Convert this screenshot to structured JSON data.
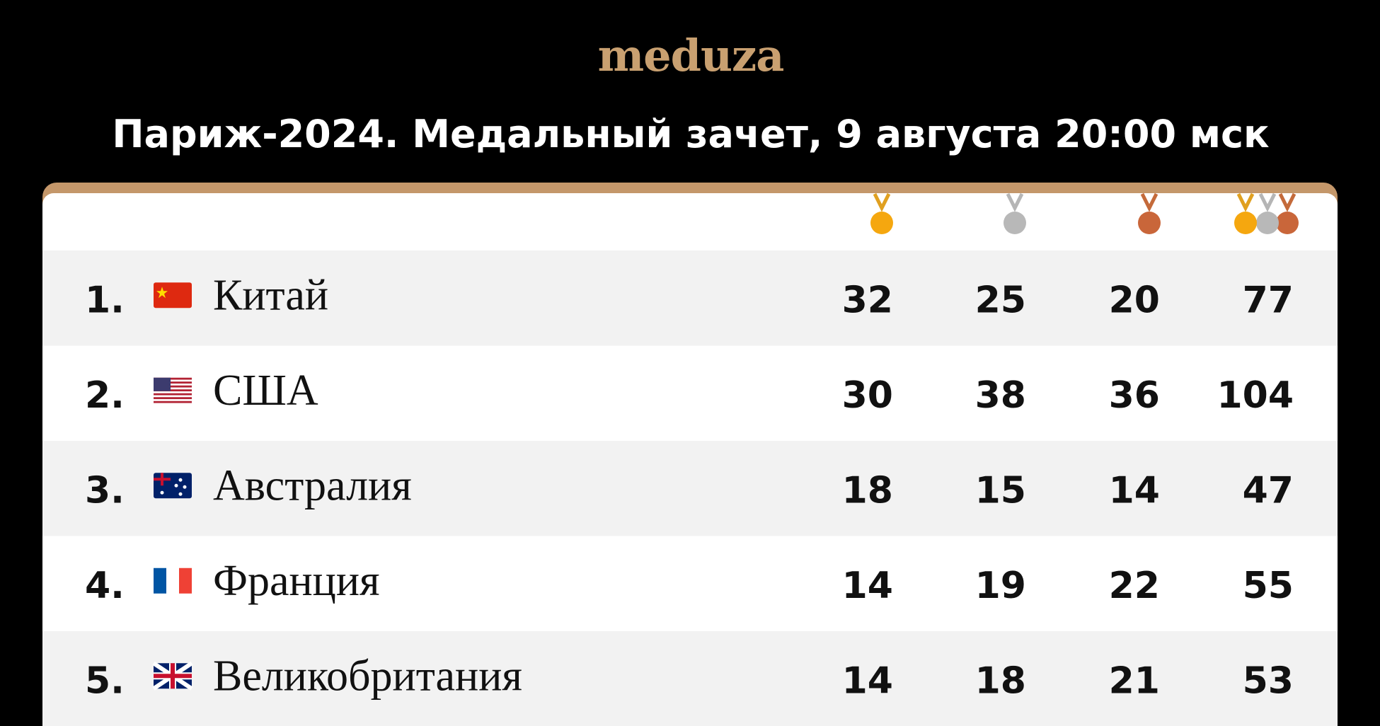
{
  "header": {
    "logo": "meduza",
    "title": "Париж-2024. Медальный зачет, 9 августа 20:00 мск"
  },
  "table": {
    "rows": [
      [
        "1.",
        "Китай",
        32,
        25,
        20,
        77
      ],
      [
        "2.",
        "США",
        30,
        38,
        36,
        104
      ],
      [
        "3.",
        "Австралия",
        18,
        15,
        14,
        47
      ],
      [
        "4.",
        "Франция",
        14,
        19,
        22,
        55
      ],
      [
        "5.",
        "Великобритания",
        14,
        18,
        21,
        53
      ]
    ]
  }
}
